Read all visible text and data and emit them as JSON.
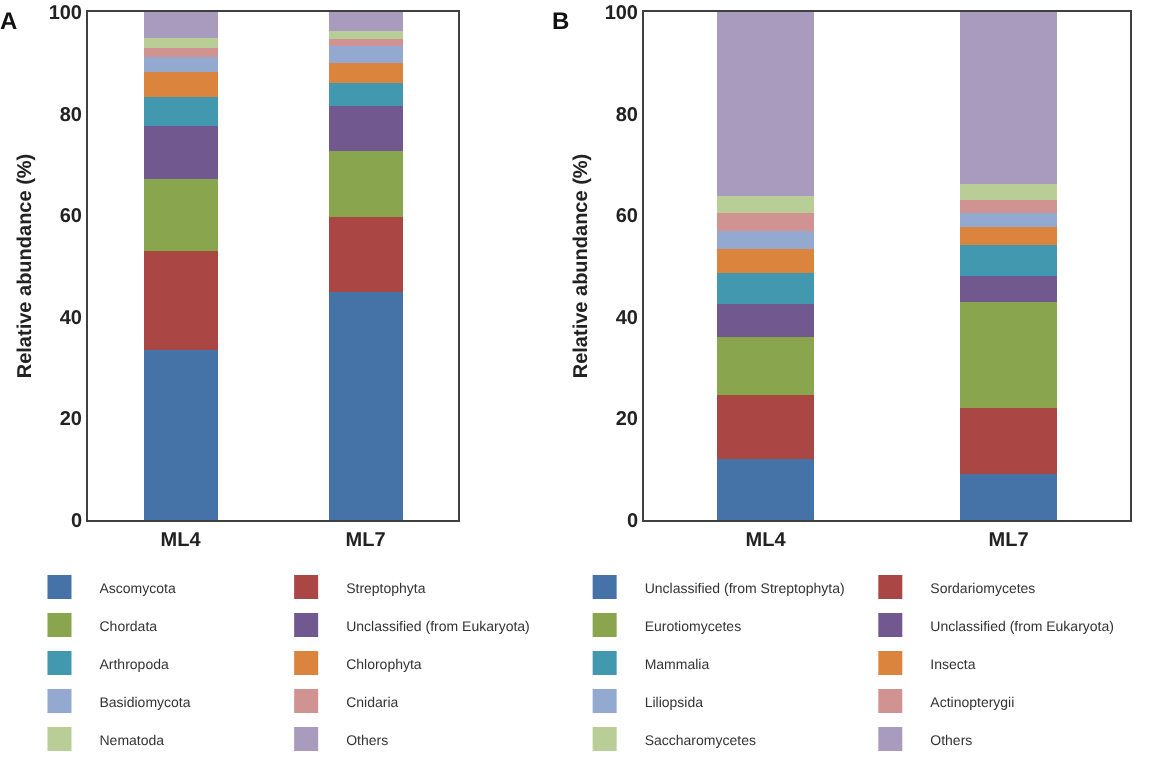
{
  "chart_data": [
    {
      "type": "bar",
      "title": "A",
      "stacked": true,
      "categories": [
        "ML4",
        "ML7"
      ],
      "ylabel": "Relative abundance (%)",
      "ylim": [
        0,
        100
      ],
      "yticks": [
        0,
        20,
        40,
        60,
        80,
        100
      ],
      "grid": false,
      "legend": "bottom",
      "series": [
        {
          "name": "Ascomycota",
          "color": "#4572a7",
          "values": [
            33.5,
            44.9
          ]
        },
        {
          "name": "Streptophyta",
          "color": "#aa4643",
          "values": [
            19.4,
            14.7
          ]
        },
        {
          "name": "Chordata",
          "color": "#89a54e",
          "values": [
            14.2,
            13.0
          ]
        },
        {
          "name": "Unclassified (from Eukaryota)",
          "color": "#71588f",
          "values": [
            10.4,
            8.8
          ]
        },
        {
          "name": "Arthropoda",
          "color": "#4198af",
          "values": [
            5.7,
            4.6
          ]
        },
        {
          "name": "Chlorophyta",
          "color": "#db843d",
          "values": [
            5.0,
            3.9
          ]
        },
        {
          "name": "Basidiomycota",
          "color": "#93a9cf",
          "values": [
            2.9,
            3.5
          ]
        },
        {
          "name": "Cnidaria",
          "color": "#d19392",
          "values": [
            1.8,
            1.3
          ]
        },
        {
          "name": "Nematoda",
          "color": "#b9cd96",
          "values": [
            1.9,
            1.5
          ]
        },
        {
          "name": "Others",
          "color": "#a99bbd",
          "values": [
            5.2,
            3.8
          ]
        }
      ]
    },
    {
      "type": "bar",
      "title": "B",
      "stacked": true,
      "categories": [
        "ML4",
        "ML7"
      ],
      "ylabel": "Relative abundance (%)",
      "ylim": [
        0,
        100
      ],
      "yticks": [
        0,
        20,
        40,
        60,
        80,
        100
      ],
      "grid": false,
      "legend": "bottom",
      "series": [
        {
          "name": "Unclassified (from Streptophyta)",
          "color": "#4572a7",
          "values": [
            12.1,
            9.1
          ]
        },
        {
          "name": "Sordariomycetes",
          "color": "#aa4643",
          "values": [
            12.6,
            12.9
          ]
        },
        {
          "name": "Eurotiomycetes",
          "color": "#89a54e",
          "values": [
            11.4,
            20.9
          ]
        },
        {
          "name": "Unclassified (from Eukaryota)",
          "color": "#71588f",
          "values": [
            6.5,
            5.1
          ]
        },
        {
          "name": "Mammalia",
          "color": "#4198af",
          "values": [
            6.1,
            6.1
          ]
        },
        {
          "name": "Insecta",
          "color": "#db843d",
          "values": [
            4.7,
            3.5
          ]
        },
        {
          "name": "Liliopsida",
          "color": "#93a9cf",
          "values": [
            3.5,
            2.8
          ]
        },
        {
          "name": "Actinopterygii",
          "color": "#d19392",
          "values": [
            3.6,
            2.5
          ]
        },
        {
          "name": "Saccharomycetes",
          "color": "#b9cd96",
          "values": [
            3.3,
            3.3
          ]
        },
        {
          "name": "Others",
          "color": "#a99bbd",
          "values": [
            36.2,
            33.8
          ]
        }
      ]
    }
  ]
}
